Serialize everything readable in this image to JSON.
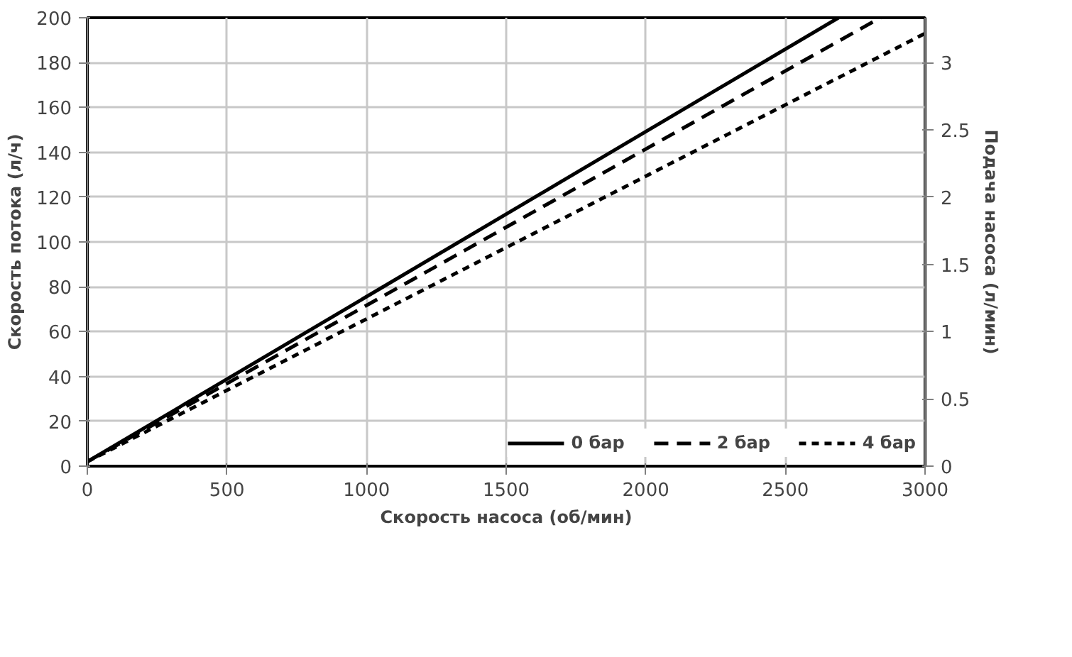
{
  "chart_data": {
    "type": "line",
    "xlabel": "Скорость насоса (об/мин)",
    "ylabel": "Скорость потока (л/ч)",
    "y2label": "Подача насоса (л/мин)",
    "series": [
      {
        "name": "0 бар",
        "color": "#000000",
        "line_style": "solid",
        "x": [
          0,
          2690
        ],
        "values": [
          2,
          200
        ]
      },
      {
        "name": "2 бар",
        "color": "#000000",
        "line_style": "dashed",
        "x": [
          0,
          2840
        ],
        "values": [
          2,
          200
        ]
      },
      {
        "name": "4 бар",
        "color": "#000000",
        "line_style": "dotted",
        "x": [
          0,
          3000
        ],
        "values": [
          2,
          193
        ]
      }
    ],
    "xlim": [
      0,
      3000
    ],
    "xticks": [
      0,
      500,
      1000,
      1500,
      2000,
      2500,
      3000
    ],
    "ylim": [
      0,
      200
    ],
    "yticks": [
      0,
      20,
      40,
      60,
      80,
      100,
      120,
      140,
      160,
      180,
      200
    ],
    "y2lim": [
      0,
      3.3333
    ],
    "y2ticks": [
      0,
      0.5,
      1,
      1.5,
      2,
      2.5,
      3
    ],
    "grid": true,
    "legend": "bottom right",
    "marker": "none"
  }
}
